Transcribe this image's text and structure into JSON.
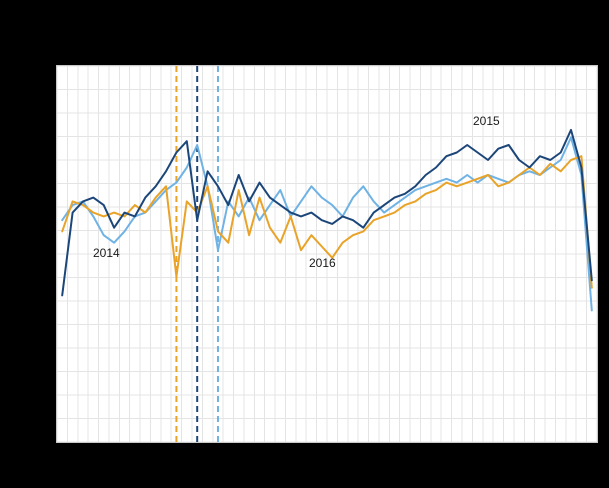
{
  "chart_data": {
    "type": "line",
    "title": "",
    "xlabel": "",
    "ylabel": "",
    "x": [
      1,
      2,
      3,
      4,
      5,
      6,
      7,
      8,
      9,
      10,
      11,
      12,
      13,
      14,
      15,
      16,
      17,
      18,
      19,
      20,
      21,
      22,
      23,
      24,
      25,
      26,
      27,
      28,
      29,
      30,
      31,
      32,
      33,
      34,
      35,
      36,
      37,
      38,
      39,
      40,
      41,
      42,
      43,
      44,
      45,
      46,
      47,
      48,
      49,
      50,
      51,
      52
    ],
    "x_unit": "week",
    "ylim": [
      0,
      100
    ],
    "grid": true,
    "legend_position": "none",
    "colors": {
      "background": "#000000",
      "plot_background": "#ffffff",
      "grid": "#e4e4e4",
      "series_2014": "#6fb2e4",
      "series_2015": "#1c4679",
      "series_2016": "#e9a328"
    },
    "series": [
      {
        "name": "2014",
        "color": "#6fb2e4",
        "values": [
          59,
          63,
          64,
          60,
          55,
          53,
          56,
          60,
          61,
          64,
          67,
          69,
          73,
          79,
          68,
          51,
          64,
          60,
          65,
          59,
          63,
          67,
          60,
          64,
          68,
          65,
          63,
          60,
          65,
          68,
          64,
          61,
          63,
          65,
          67,
          68,
          69,
          70,
          69,
          71,
          69,
          71,
          70,
          69,
          71,
          72,
          71,
          73,
          75,
          81,
          71,
          35
        ]
      },
      {
        "name": "2016",
        "color": "#e9a328",
        "values": [
          56,
          64,
          63,
          61,
          60,
          61,
          60,
          63,
          61,
          65,
          68,
          44,
          64,
          61,
          68,
          56,
          53,
          67,
          55,
          65,
          57,
          53,
          60,
          51,
          55,
          52,
          49,
          53,
          55,
          56,
          59,
          60,
          61,
          63,
          64,
          66,
          67,
          69,
          68,
          69,
          70,
          71,
          68,
          69,
          71,
          73,
          71,
          74,
          72,
          75,
          76,
          41
        ]
      },
      {
        "name": "2015",
        "color": "#1c4679",
        "values": [
          39,
          61,
          64,
          65,
          63,
          57,
          61,
          60,
          65,
          68,
          72,
          77,
          80,
          59,
          72,
          68,
          63,
          71,
          64,
          69,
          65,
          63,
          61,
          60,
          61,
          59,
          58,
          60,
          59,
          57,
          61,
          63,
          65,
          66,
          68,
          71,
          73,
          76,
          77,
          79,
          77,
          75,
          78,
          79,
          75,
          73,
          76,
          75,
          77,
          83,
          73,
          43
        ]
      }
    ],
    "event_lines": [
      {
        "week": 12,
        "color": "#e9a328",
        "style": "dashed"
      },
      {
        "week": 14,
        "color": "#1c4679",
        "style": "dashed"
      },
      {
        "week": 16,
        "color": "#6fb2e4",
        "style": "dashed"
      }
    ],
    "annotations": [
      {
        "text": "2014",
        "series": "2014",
        "week": 5,
        "value": 48
      },
      {
        "text": "2016",
        "series": "2016",
        "week": 25,
        "value": 46
      },
      {
        "text": "2015",
        "series": "2015",
        "week": 41,
        "value": 84
      }
    ]
  }
}
